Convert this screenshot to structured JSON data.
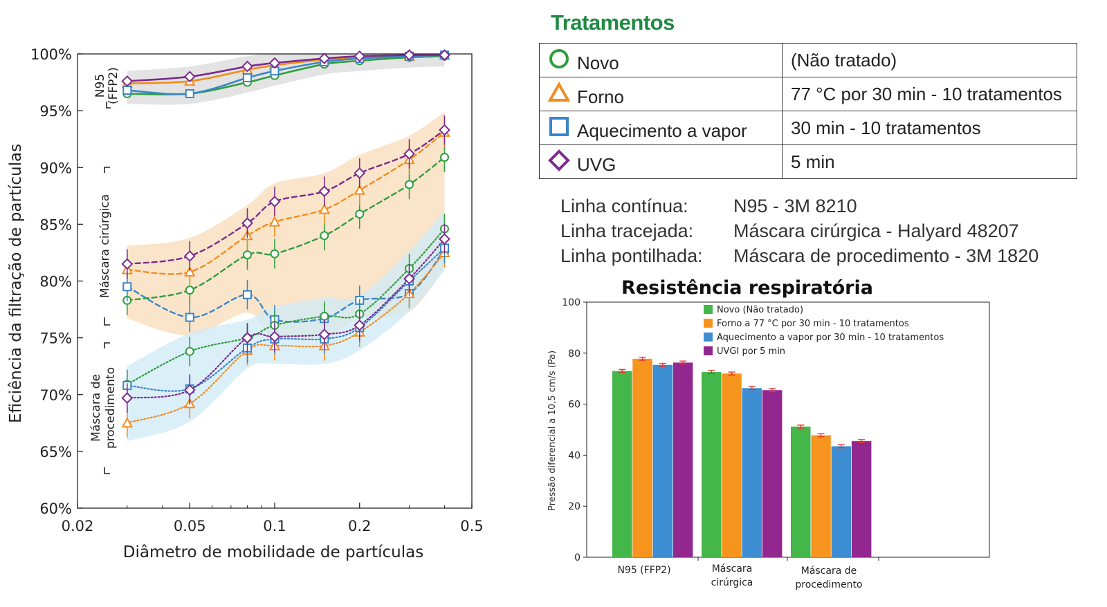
{
  "left_chart": {
    "ylabel": "Eficiência da filtração de partículas",
    "xlabel": "Diâmetro de mobilidade de partículas",
    "yticks": [
      "60%",
      "65%",
      "70%",
      "75%",
      "80%",
      "85%",
      "90%",
      "95%",
      "100%"
    ],
    "xticks": [
      "0.02",
      "0.05",
      "0.1",
      "0.2",
      "0.5"
    ],
    "groups": {
      "n95_line1": "N95",
      "n95_line2": "(FFP2)",
      "surgical": "Máscara cirúrgica",
      "procedure_line1": "Máscara de",
      "procedure_line2": "procedimento"
    }
  },
  "treatments": {
    "title": "Tratamentos",
    "rows": [
      {
        "name": "Novo",
        "desc": "(Não tratado)",
        "symbol": "circle",
        "color": "#2e9e3e"
      },
      {
        "name": "Forno",
        "desc": "77 °C por 30 min - 10 tratamentos",
        "symbol": "triangle",
        "color": "#f28c1e"
      },
      {
        "name": "Aquecimento a vapor",
        "desc": "30 min - 10 tratamentos",
        "symbol": "square",
        "color": "#3a86c8"
      },
      {
        "name": "UVG",
        "desc": "5 min",
        "symbol": "diamond",
        "color": "#7b2a8e"
      }
    ]
  },
  "line_styles": [
    {
      "label": "Linha contínua:",
      "value": "N95 - 3M 8210"
    },
    {
      "label": "Linha tracejada:",
      "value": "Máscara cirúrgica - Halyard 48207"
    },
    {
      "label": "Linha pontilhada:",
      "value": "Máscara de procedimento - 3M 1820"
    }
  ],
  "bar_chart_text": {
    "title": "Resistência respiratória",
    "ylabel": "Pressão diferencial a 10,5 cm/s (Pa)",
    "yticks": [
      "0",
      "20",
      "40",
      "60",
      "80",
      "100"
    ],
    "cat1": "N95 (FFP2)",
    "cat2_line1": "Máscara",
    "cat2_line2": "cirúrgica",
    "cat3_line1": "Máscara de",
    "cat3_line2": "procedimento",
    "legend": [
      "Novo (Não tratado)",
      "Forno a 77 °C por 30 min - 10 tratamentos",
      "Aquecimento a vapor por 30 min - 10 tratamentos",
      "UVGI por 5 min"
    ]
  },
  "chart_data": [
    {
      "type": "line",
      "xlabel": "Diâmetro de mobilidade de partículas",
      "ylabel": "Eficiência da filtração de partículas",
      "xscale": "log",
      "xlim": [
        0.02,
        0.5
      ],
      "ylim": [
        60,
        100
      ],
      "x": [
        0.03,
        0.05,
        0.08,
        0.1,
        0.15,
        0.2,
        0.3,
        0.4
      ],
      "series": [
        {
          "name": "Novo",
          "mask": "N95 (FFP2)",
          "values": [
            96.5,
            96.5,
            97.5,
            98.1,
            99.1,
            99.4,
            99.7,
            99.8
          ]
        },
        {
          "name": "Forno",
          "mask": "N95 (FFP2)",
          "values": [
            97.4,
            97.6,
            98.6,
            99.0,
            99.5,
            99.7,
            99.8,
            99.9
          ]
        },
        {
          "name": "Aquecimento a vapor",
          "mask": "N95 (FFP2)",
          "values": [
            96.8,
            96.5,
            97.9,
            98.5,
            99.3,
            99.6,
            99.8,
            99.9
          ]
        },
        {
          "name": "UVG",
          "mask": "N95 (FFP2)",
          "values": [
            97.6,
            98.0,
            98.9,
            99.2,
            99.6,
            99.8,
            99.9,
            99.9
          ]
        },
        {
          "name": "Novo",
          "mask": "Máscara cirúrgica",
          "values": [
            78.3,
            79.2,
            82.3,
            82.4,
            84.0,
            85.9,
            88.5,
            90.9
          ]
        },
        {
          "name": "Forno",
          "mask": "Máscara cirúrgica",
          "values": [
            81.0,
            80.8,
            84.0,
            85.2,
            86.3,
            88.0,
            90.7,
            93.1
          ]
        },
        {
          "name": "Aquecimento a vapor",
          "mask": "Máscara cirúrgica",
          "values": [
            79.5,
            76.8,
            78.8,
            76.6,
            76.7,
            78.3,
            78.9,
            82.8
          ]
        },
        {
          "name": "UVG",
          "mask": "Máscara cirúrgica",
          "values": [
            81.5,
            82.2,
            85.1,
            87.0,
            87.9,
            89.5,
            91.2,
            93.3
          ]
        },
        {
          "name": "Novo",
          "mask": "Máscara de procedimento",
          "values": [
            70.9,
            73.8,
            75.0,
            76.1,
            76.9,
            77.1,
            81.1,
            84.6
          ]
        },
        {
          "name": "Forno",
          "mask": "Máscara de procedimento",
          "values": [
            67.5,
            69.2,
            73.9,
            74.3,
            74.3,
            75.5,
            78.9,
            82.5
          ]
        },
        {
          "name": "Aquecimento a vapor",
          "mask": "Máscara de procedimento",
          "values": [
            70.8,
            70.5,
            74.1,
            74.9,
            74.9,
            75.9,
            80.0,
            82.9
          ]
        },
        {
          "name": "UVG",
          "mask": "Máscara de procedimento",
          "values": [
            69.7,
            70.4,
            75.0,
            75.1,
            75.3,
            76.1,
            80.2,
            83.7
          ]
        }
      ]
    },
    {
      "type": "bar",
      "title": "Resistência respiratória",
      "ylabel": "Pressão diferencial a 10,5 cm/s (Pa)",
      "ylim": [
        0,
        100
      ],
      "categories": [
        "N95 (FFP2)",
        "Máscara cirúrgica",
        "Máscara de procedimento"
      ],
      "series": [
        {
          "name": "Novo (Não tratado)",
          "color": "#45b649",
          "values": [
            73.0,
            72.6,
            51.2
          ]
        },
        {
          "name": "Forno a 77 °C por 30 min - 10 tratamentos",
          "color": "#f7941e",
          "values": [
            77.8,
            72.0,
            47.8
          ]
        },
        {
          "name": "Aquecimento a vapor por 30 min - 10 tratamentos",
          "color": "#3d8dd3",
          "values": [
            75.4,
            66.3,
            43.5
          ]
        },
        {
          "name": "UVGI por 5 min",
          "color": "#92278f",
          "values": [
            76.3,
            65.5,
            45.5
          ]
        }
      ]
    }
  ]
}
